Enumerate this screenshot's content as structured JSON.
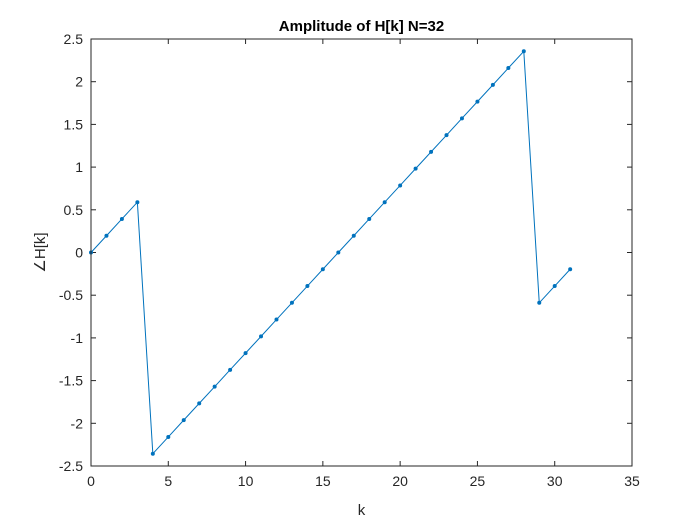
{
  "chart_data": {
    "type": "line",
    "title": "Amplitude of H[k] N=32",
    "xlabel": "k",
    "ylabel": "∠H[k]",
    "xlim": [
      0,
      35
    ],
    "ylim": [
      -2.5,
      2.5
    ],
    "xticks": [
      0,
      5,
      10,
      15,
      20,
      25,
      30,
      35
    ],
    "xtick_labels": [
      "0",
      "5",
      "10",
      "15",
      "20",
      "25",
      "30",
      "35"
    ],
    "yticks": [
      -2.5,
      -2,
      -1.5,
      -1,
      -0.5,
      0,
      0.5,
      1,
      1.5,
      2,
      2.5
    ],
    "ytick_labels": [
      "-2.5",
      "-2",
      "-1.5",
      "-1",
      "-0.5",
      "0",
      "0.5",
      "1",
      "1.5",
      "2",
      "2.5"
    ],
    "grid": false,
    "line_color": "#0072BD",
    "axis_color": "#262626",
    "series": [
      {
        "x": [
          0,
          1,
          2,
          3,
          4,
          5,
          6,
          7,
          8,
          9,
          10,
          11,
          12,
          13,
          14,
          15,
          16,
          17,
          18,
          19,
          20,
          21,
          22,
          23,
          24,
          25,
          26,
          27,
          28,
          29,
          30,
          31
        ],
        "values": [
          0,
          0.196,
          0.393,
          0.589,
          -2.356,
          -2.16,
          -1.963,
          -1.767,
          -1.571,
          -1.374,
          -1.178,
          -0.982,
          -0.785,
          -0.589,
          -0.393,
          -0.196,
          0,
          0.196,
          0.393,
          0.589,
          0.785,
          0.982,
          1.178,
          1.374,
          1.571,
          1.767,
          1.963,
          2.16,
          2.356,
          -0.589,
          -0.393,
          -0.196
        ]
      }
    ]
  }
}
